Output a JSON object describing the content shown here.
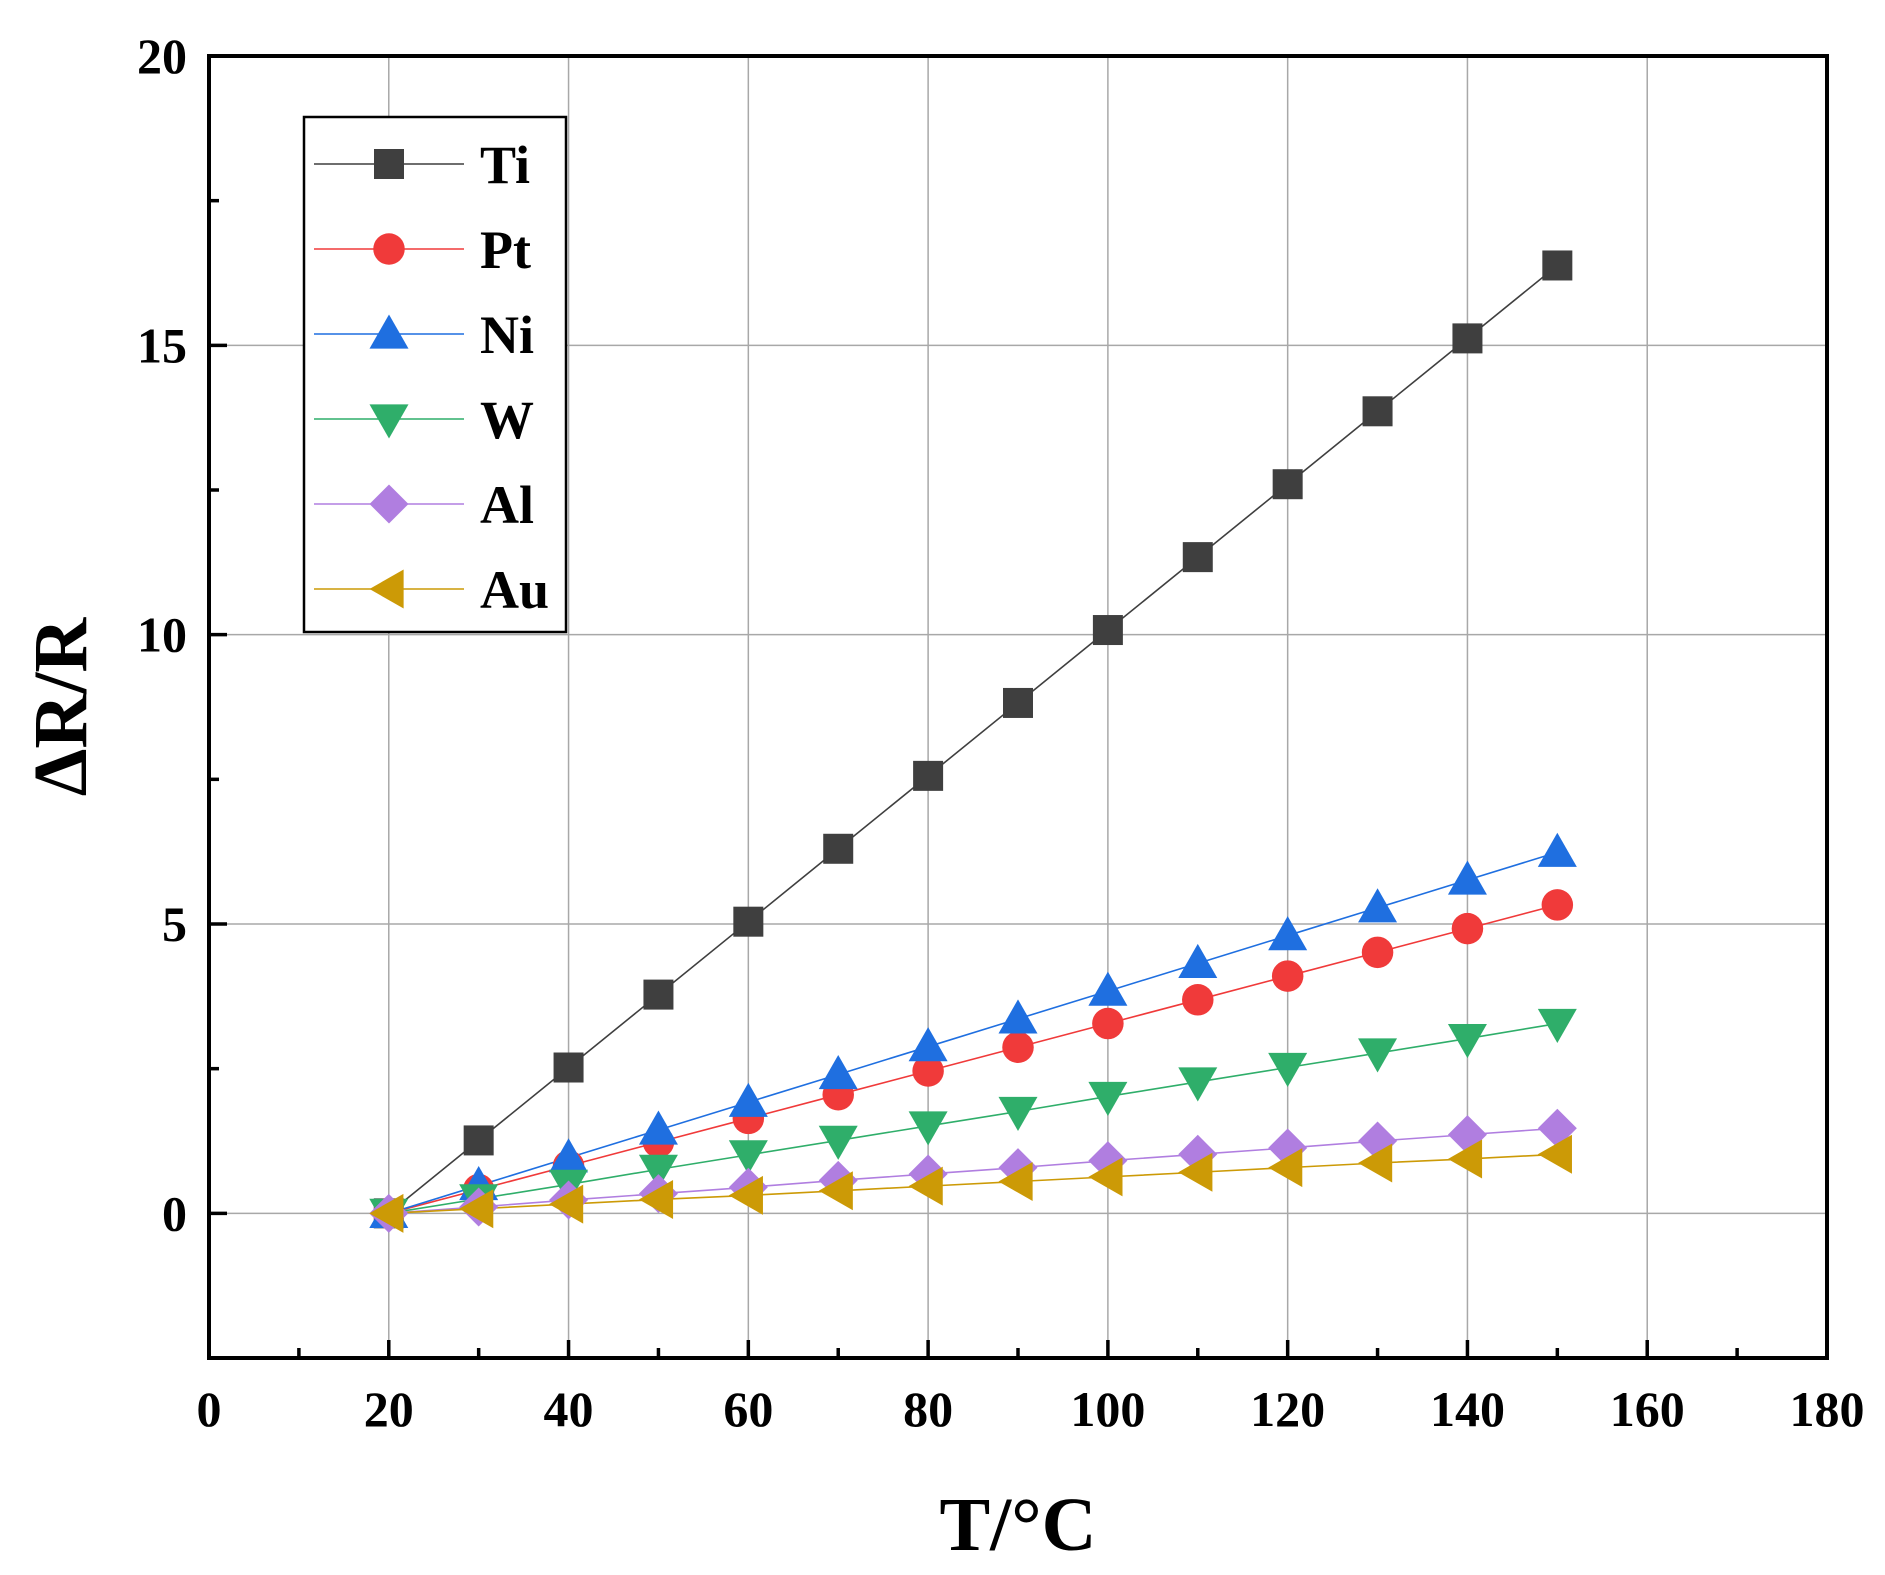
{
  "chart_data": {
    "type": "line",
    "xlabel": "T/°C",
    "ylabel": "ΔR/R",
    "xlim": [
      0,
      180
    ],
    "ylim": [
      -2.5,
      20
    ],
    "x_ticks": [
      0,
      20,
      40,
      60,
      80,
      100,
      120,
      140,
      160,
      180
    ],
    "x_tick_labels": [
      "0",
      "20",
      "40",
      "60",
      "80",
      "100",
      "120",
      "140",
      "160",
      "180"
    ],
    "y_ticks": [
      0,
      5,
      10,
      15,
      20
    ],
    "y_tick_labels": [
      "0",
      "5",
      "10",
      "15",
      "20"
    ],
    "grid": true,
    "legend_position": "top-left",
    "x": [
      20,
      30,
      40,
      50,
      60,
      70,
      80,
      90,
      100,
      110,
      120,
      130,
      140,
      150
    ],
    "series": [
      {
        "name": "Ti",
        "marker": "square",
        "color": "#3f3f3f",
        "line_color": "#3f3f3f",
        "values": [
          0,
          1.26,
          2.52,
          3.78,
          5.04,
          6.3,
          7.56,
          8.82,
          10.08,
          11.34,
          12.6,
          13.86,
          15.12,
          16.38
        ]
      },
      {
        "name": "Pt",
        "marker": "circle",
        "color": "#f03a3a",
        "line_color": "#f03a3a",
        "values": [
          0,
          0.41,
          0.82,
          1.23,
          1.64,
          2.05,
          2.46,
          2.87,
          3.28,
          3.69,
          4.1,
          4.51,
          4.92,
          5.33
        ]
      },
      {
        "name": "Ni",
        "marker": "triangle-up",
        "color": "#1f6fe0",
        "line_color": "#1f6fe0",
        "values": [
          0,
          0.48,
          0.96,
          1.44,
          1.92,
          2.4,
          2.88,
          3.36,
          3.84,
          4.32,
          4.8,
          5.28,
          5.76,
          6.24
        ]
      },
      {
        "name": "W",
        "marker": "triangle-down",
        "color": "#2fae6a",
        "line_color": "#2fae6a",
        "values": [
          0,
          0.25,
          0.5,
          0.76,
          1.01,
          1.26,
          1.51,
          1.76,
          2.02,
          2.27,
          2.52,
          2.77,
          3.02,
          3.28
        ]
      },
      {
        "name": "Al",
        "marker": "diamond",
        "color": "#b07ee0",
        "line_color": "#b07ee0",
        "values": [
          0,
          0.11,
          0.23,
          0.34,
          0.45,
          0.57,
          0.68,
          0.79,
          0.91,
          1.02,
          1.13,
          1.25,
          1.36,
          1.47
        ]
      },
      {
        "name": "Au",
        "marker": "triangle-left",
        "color": "#cc9a06",
        "line_color": "#cc9a06",
        "values": [
          0,
          0.08,
          0.16,
          0.24,
          0.31,
          0.39,
          0.47,
          0.55,
          0.63,
          0.71,
          0.79,
          0.87,
          0.94,
          1.02
        ]
      }
    ]
  }
}
